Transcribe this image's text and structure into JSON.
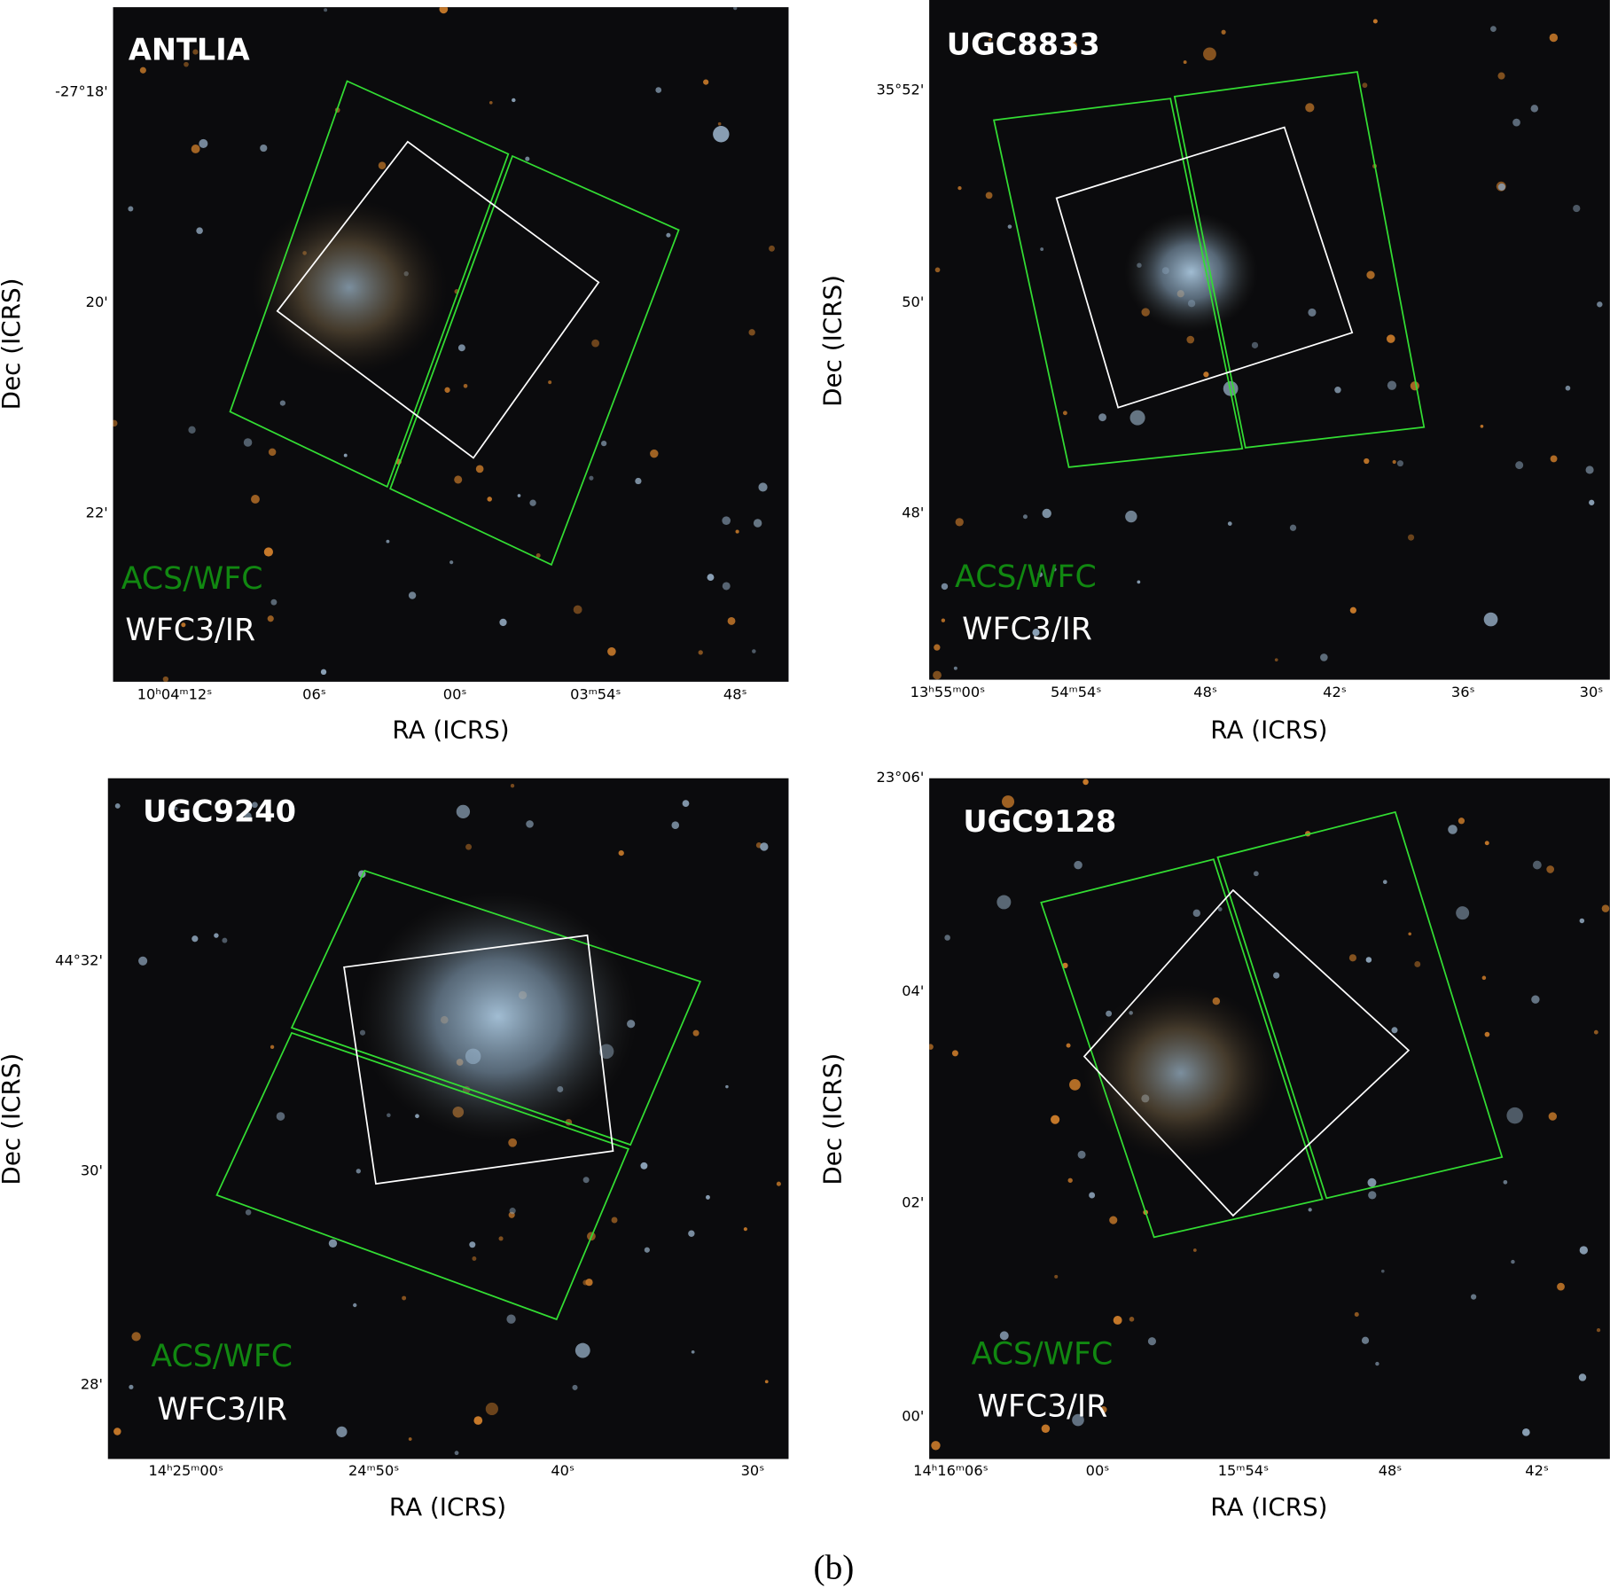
{
  "panels": [
    {
      "title": "ANTLIA",
      "x_label": "RA (ICRS)",
      "y_label": "Dec (ICRS)",
      "legend": [
        "ACS/WFC",
        "WFC3/IR"
      ],
      "x_ticks": [
        "10ʰ04ᵐ12ˢ",
        "06ˢ",
        "00ˢ",
        "03ᵐ54ˢ",
        "48ˢ"
      ],
      "y_ticks": [
        "-27°18'",
        "20'",
        "22'"
      ]
    },
    {
      "title": "UGC8833",
      "x_label": "RA (ICRS)",
      "y_label": "Dec (ICRS)",
      "legend": [
        "ACS/WFC",
        "WFC3/IR"
      ],
      "x_ticks": [
        "13ʰ55ᵐ00ˢ",
        "54ᵐ54ˢ",
        "48ˢ",
        "42ˢ",
        "36ˢ",
        "30ˢ"
      ],
      "y_ticks": [
        "35°52'",
        "50'",
        "48'"
      ]
    },
    {
      "title": "UGC9240",
      "x_label": "RA (ICRS)",
      "y_label": "Dec (ICRS)",
      "legend": [
        "ACS/WFC",
        "WFC3/IR"
      ],
      "x_ticks": [
        "14ʰ25ᵐ00ˢ",
        "24ᵐ50ˢ",
        "40ˢ",
        "30ˢ"
      ],
      "y_ticks": [
        "44°32'",
        "30'",
        "28'"
      ]
    },
    {
      "title": "UGC9128",
      "x_label": "RA (ICRS)",
      "y_label": "Dec (ICRS)",
      "legend": [
        "ACS/WFC",
        "WFC3/IR"
      ],
      "x_ticks": [
        "14ʰ16ᵐ06ˢ",
        "00ˢ",
        "15ᵐ54ˢ",
        "48ˢ",
        "42ˢ"
      ],
      "y_ticks": [
        "23°06'",
        "04'",
        "02'",
        "00'"
      ]
    }
  ],
  "caption": "(b)"
}
